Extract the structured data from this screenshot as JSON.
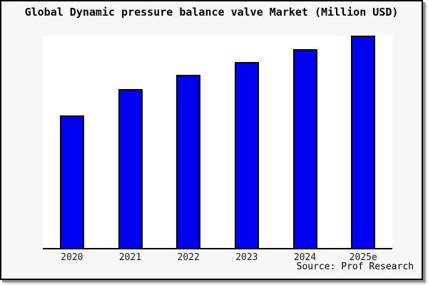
{
  "title": "Global Dynamic pressure balance valve Market (Million USD)",
  "source": "Source: Prof Research",
  "colors": {
    "bar_fill": "#0101f1",
    "bar_edge": "#000000",
    "frame_bg": "#f7f7f7",
    "plot_bg": "#ffffff",
    "axis": "#000000",
    "border": "#000000"
  },
  "chart_data": {
    "type": "bar",
    "title": "Global Dynamic pressure balance valve Market (Million USD)",
    "categories": [
      "2020",
      "2021",
      "2022",
      "2023",
      "2024",
      "2025e"
    ],
    "values": [
      62.5,
      75,
      81.5,
      87.5,
      93.5,
      100
    ],
    "xlabel": "",
    "ylabel": "",
    "ylim": [
      0,
      100
    ],
    "y_axis_visible": false,
    "grid": false,
    "legend": false,
    "source": "Source: Prof Research"
  }
}
